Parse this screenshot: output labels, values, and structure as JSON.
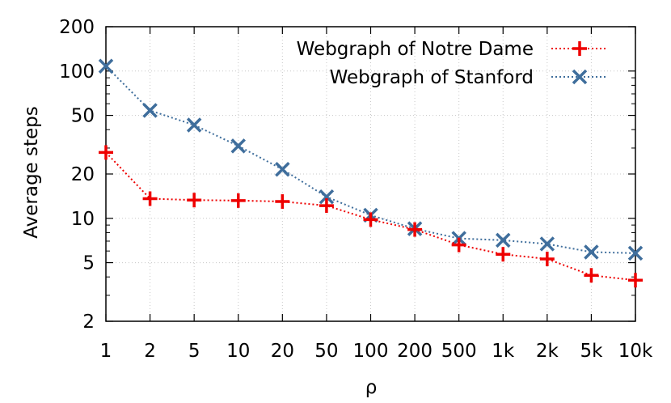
{
  "chart_data": {
    "type": "line",
    "x": [
      "1",
      "2",
      "5",
      "10",
      "20",
      "50",
      "100",
      "200",
      "500",
      "1k",
      "2k",
      "5k",
      "10k"
    ],
    "xlabel": "ρ",
    "ylabel": "Average steps",
    "yscale": "log",
    "ylim": [
      2,
      200
    ],
    "yticks": [
      2,
      5,
      10,
      20,
      50,
      100,
      200
    ],
    "grid": true,
    "legend_position": "top-right",
    "series": [
      {
        "name": "Webgraph of Notre Dame",
        "color": "#ee0000",
        "marker": "plus",
        "values": [
          28,
          13.6,
          13.3,
          13.2,
          13.0,
          12.2,
          9.8,
          8.4,
          6.6,
          5.7,
          5.3,
          4.1,
          3.8
        ]
      },
      {
        "name": "Webgraph of Stanford",
        "color": "#3f6e9c",
        "marker": "cross",
        "values": [
          108,
          54,
          43,
          31,
          21.5,
          14,
          10.5,
          8.5,
          7.3,
          7.1,
          6.7,
          5.9,
          5.8
        ]
      }
    ]
  }
}
